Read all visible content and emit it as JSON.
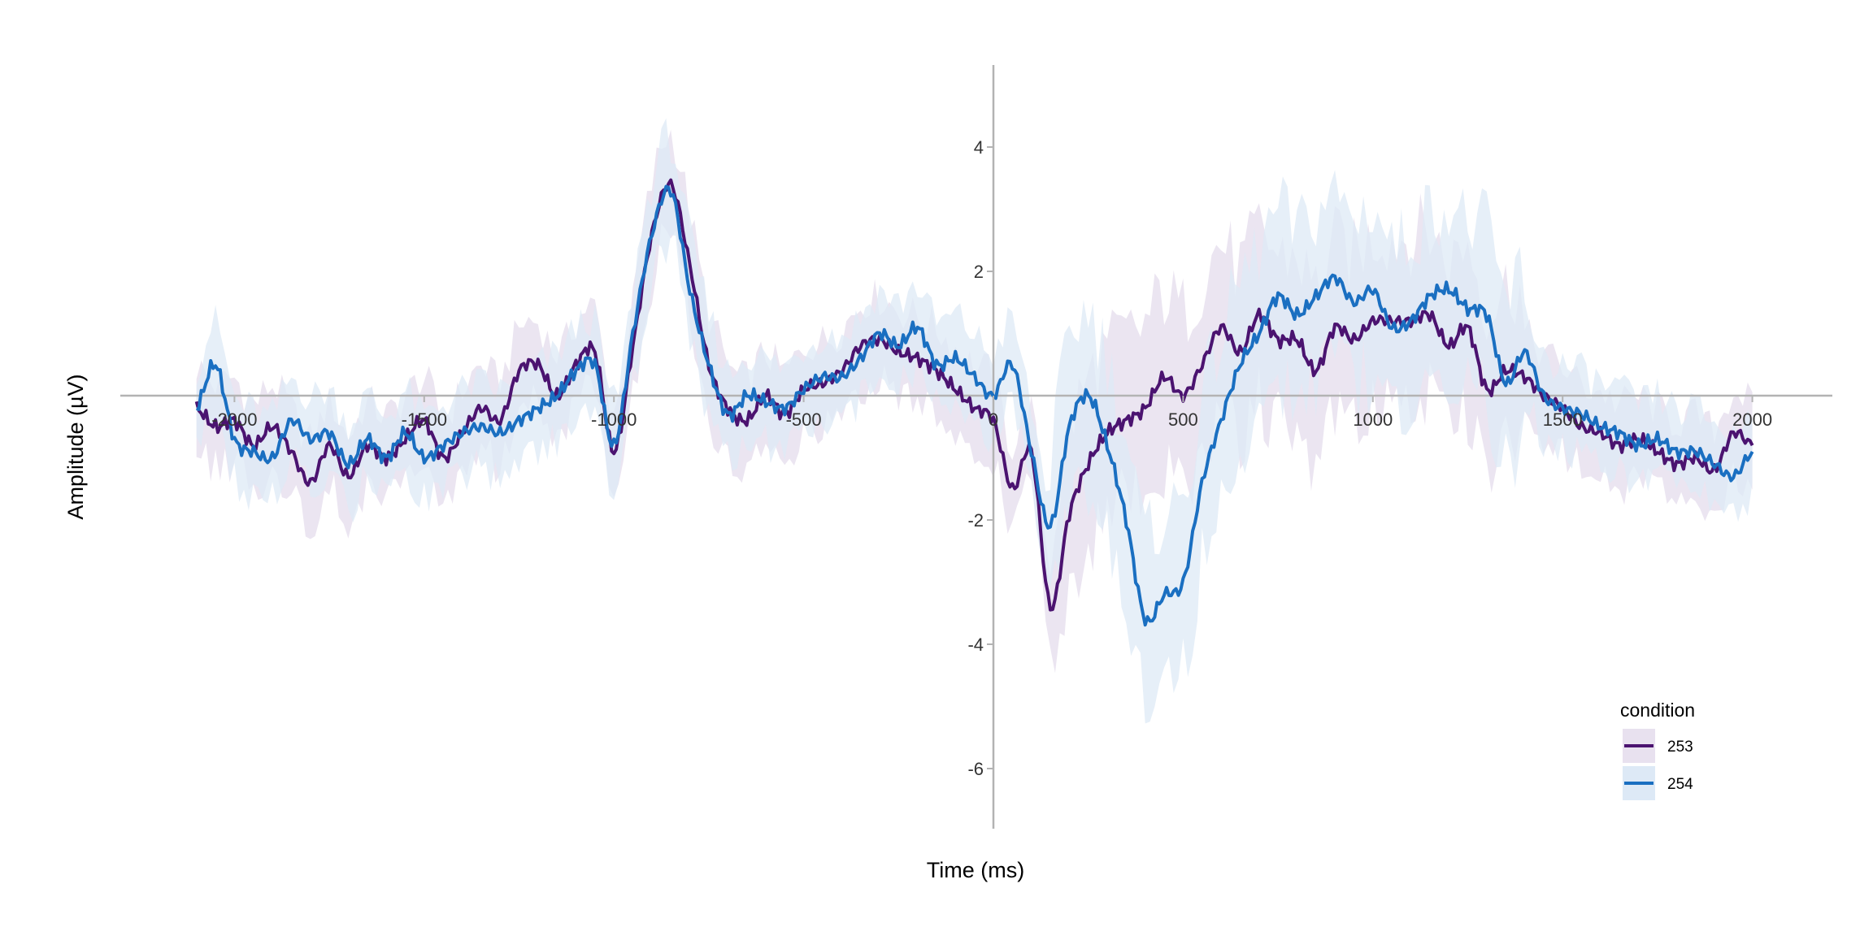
{
  "chart_data": {
    "type": "line",
    "title": "",
    "xlabel": "Time (ms)",
    "ylabel": "Amplitude (µV)",
    "xlim": [
      -2100,
      2000
    ],
    "ylim": [
      -7,
      5.3
    ],
    "x_ticks": [
      -2000,
      -1500,
      -1000,
      -500,
      0,
      500,
      1000,
      1500,
      2000
    ],
    "x_tick_labels": [
      "-2000",
      "-1500",
      "-1000",
      "-500",
      "0",
      "500",
      "1000",
      "1500",
      "2000"
    ],
    "y_ticks": [
      4,
      2,
      -2,
      -4,
      -6
    ],
    "y_tick_labels": [
      "4",
      "2",
      "-2",
      "-4",
      "-6"
    ],
    "grid": false,
    "legend": {
      "title": "condition",
      "position": "bottom-right"
    },
    "x": [
      -2100,
      -2050,
      -2000,
      -1950,
      -1900,
      -1850,
      -1800,
      -1750,
      -1700,
      -1650,
      -1600,
      -1550,
      -1500,
      -1450,
      -1400,
      -1350,
      -1300,
      -1250,
      -1200,
      -1150,
      -1100,
      -1050,
      -1000,
      -950,
      -900,
      -850,
      -800,
      -750,
      -700,
      -650,
      -600,
      -550,
      -500,
      -450,
      -400,
      -350,
      -300,
      -250,
      -200,
      -150,
      -100,
      -50,
      0,
      50,
      100,
      150,
      200,
      250,
      300,
      350,
      400,
      450,
      500,
      550,
      600,
      650,
      700,
      750,
      800,
      850,
      900,
      950,
      1000,
      1050,
      1100,
      1150,
      1200,
      1250,
      1300,
      1350,
      1400,
      1450,
      1500,
      1550,
      1600,
      1650,
      1700,
      1750,
      1800,
      1850,
      1900,
      1950,
      2000
    ],
    "series": [
      {
        "name": "253",
        "color": "#4b1370",
        "band_color": "#e8e1ef",
        "values": [
          -0.2,
          -0.5,
          -0.4,
          -0.8,
          -0.5,
          -0.9,
          -1.4,
          -0.8,
          -1.3,
          -0.8,
          -1.0,
          -0.7,
          -0.4,
          -1.0,
          -0.6,
          -0.2,
          -0.4,
          0.4,
          0.5,
          0.0,
          0.5,
          0.7,
          -0.9,
          0.8,
          2.6,
          3.4,
          2.1,
          0.5,
          -0.2,
          -0.4,
          0.0,
          -0.3,
          0.1,
          0.2,
          0.4,
          0.8,
          0.9,
          0.7,
          0.6,
          0.4,
          0.1,
          -0.2,
          -0.4,
          -1.5,
          -0.9,
          -3.4,
          -1.9,
          -1.1,
          -0.6,
          -0.4,
          -0.2,
          0.3,
          0.0,
          0.5,
          1.1,
          0.7,
          1.3,
          0.9,
          0.9,
          0.4,
          1.1,
          0.9,
          1.2,
          1.2,
          1.2,
          1.3,
          0.8,
          1.1,
          0.1,
          0.4,
          0.3,
          0.0,
          -0.2,
          -0.5,
          -0.6,
          -0.8,
          -0.7,
          -0.9,
          -1.1,
          -1.0,
          -1.2,
          -0.6,
          -0.8
        ]
      },
      {
        "name": "254",
        "color": "#1a6fc1",
        "band_color": "#dde9f6",
        "values": [
          -0.2,
          0.5,
          -0.7,
          -0.9,
          -1.0,
          -0.4,
          -0.7,
          -0.6,
          -1.1,
          -0.7,
          -1.0,
          -0.6,
          -1.0,
          -0.8,
          -0.6,
          -0.5,
          -0.6,
          -0.4,
          -0.2,
          0.0,
          0.4,
          0.5,
          -0.8,
          1.0,
          2.6,
          3.3,
          1.7,
          0.5,
          -0.3,
          0.0,
          -0.1,
          -0.2,
          0.1,
          0.3,
          0.3,
          0.6,
          1.0,
          0.8,
          1.1,
          0.5,
          0.6,
          0.3,
          0.0,
          0.5,
          -0.9,
          -2.1,
          -0.5,
          0.0,
          -0.8,
          -2.0,
          -3.6,
          -3.2,
          -3.0,
          -1.4,
          -0.4,
          0.5,
          1.0,
          1.6,
          1.3,
          1.6,
          1.9,
          1.5,
          1.7,
          1.1,
          1.2,
          1.6,
          1.7,
          1.4,
          1.3,
          0.2,
          0.7,
          0.0,
          -0.2,
          -0.3,
          -0.5,
          -0.6,
          -0.8,
          -0.7,
          -0.9,
          -0.9,
          -1.1,
          -1.3,
          -0.9
        ]
      }
    ]
  }
}
